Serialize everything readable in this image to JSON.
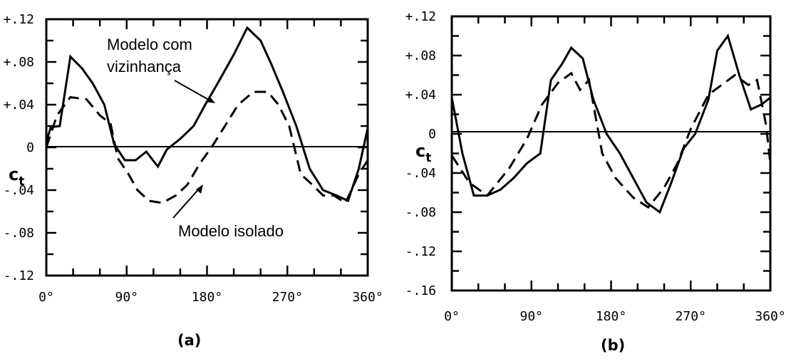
{
  "chart_data": [
    {
      "type": "line",
      "panel_label": "(a)",
      "ylabel": "c",
      "ylabel_sub": "t",
      "xlim": [
        0,
        360
      ],
      "ylim": [
        -0.12,
        0.12
      ],
      "x_tick_labels": [
        "0°",
        "90°",
        "180°",
        "270°",
        "360°"
      ],
      "y_tick_labels": [
        {
          "value": 0.12,
          "label": "+.12"
        },
        {
          "value": 0.08,
          "label": "+.08"
        },
        {
          "value": 0.04,
          "label": "+.04"
        },
        {
          "value": 0,
          "label": "0"
        },
        {
          "value": -0.04,
          "label": "-.04"
        },
        {
          "value": -0.08,
          "label": "-.08"
        },
        {
          "value": -0.12,
          "label": "-.12"
        }
      ],
      "series": [
        {
          "name": "Modelo com vizinhança",
          "style": "solid",
          "x": [
            0,
            5,
            15,
            27,
            40,
            52,
            65,
            76,
            88,
            100,
            112,
            125,
            135,
            150,
            165,
            178,
            192,
            210,
            225,
            240,
            252,
            265,
            280,
            295,
            310,
            325,
            338,
            350,
            360
          ],
          "y": [
            0.005,
            0.019,
            0.02,
            0.085,
            0.074,
            0.06,
            0.04,
            0.003,
            -0.012,
            -0.012,
            -0.004,
            -0.018,
            -0.002,
            0.008,
            0.02,
            0.04,
            0.06,
            0.087,
            0.112,
            0.1,
            0.078,
            0.052,
            0.02,
            -0.02,
            -0.04,
            -0.045,
            -0.05,
            -0.02,
            0.018
          ]
        },
        {
          "name": "Modelo isolado",
          "style": "dashed",
          "x": [
            0,
            12,
            27,
            45,
            60,
            72,
            80,
            92,
            102,
            115,
            130,
            145,
            158,
            172,
            185,
            200,
            215,
            232,
            248,
            260,
            272,
            285,
            298,
            310,
            322,
            335,
            350,
            360
          ],
          "y": [
            0.0,
            0.03,
            0.047,
            0.045,
            0.03,
            0.022,
            -0.01,
            -0.025,
            -0.04,
            -0.05,
            -0.052,
            -0.045,
            -0.035,
            -0.015,
            0.0,
            0.02,
            0.04,
            0.052,
            0.052,
            0.04,
            0.02,
            -0.025,
            -0.035,
            -0.045,
            -0.045,
            -0.052,
            -0.025,
            -0.012
          ]
        }
      ],
      "annotations": [
        {
          "text_lines": [
            "Modelo com",
            "vizinhança"
          ]
        },
        {
          "text_lines": [
            "Modelo isolado"
          ]
        }
      ]
    },
    {
      "type": "line",
      "panel_label": "(b)",
      "ylabel": "c",
      "ylabel_sub": "t",
      "xlim": [
        0,
        360
      ],
      "ylim": [
        -0.16,
        0.12
      ],
      "x_tick_labels": [
        "0°",
        "90°",
        "180°",
        "270°",
        "360°"
      ],
      "y_tick_labels": [
        {
          "value": 0.12,
          "label": "+.12"
        },
        {
          "value": 0.08,
          "label": "+.08"
        },
        {
          "value": 0.04,
          "label": "+.04"
        },
        {
          "value": 0,
          "label": "0"
        },
        {
          "value": -0.04,
          "label": "-.04"
        },
        {
          "value": -0.08,
          "label": "-.08"
        },
        {
          "value": -0.12,
          "label": "-.12"
        },
        {
          "value": -0.16,
          "label": "-.16"
        }
      ],
      "series": [
        {
          "name": "",
          "style": "solid",
          "x": [
            0,
            12,
            25,
            40,
            55,
            70,
            85,
            100,
            112,
            125,
            135,
            148,
            160,
            175,
            190,
            205,
            220,
            235,
            248,
            262,
            275,
            290,
            300,
            312,
            325,
            338,
            350,
            360
          ],
          "y": [
            0.037,
            -0.02,
            -0.063,
            -0.063,
            -0.057,
            -0.045,
            -0.03,
            -0.02,
            0.055,
            0.072,
            0.088,
            0.077,
            0.035,
            0.0,
            -0.02,
            -0.045,
            -0.07,
            -0.08,
            -0.05,
            -0.015,
            0.0,
            0.035,
            0.085,
            0.1,
            0.06,
            0.025,
            0.03,
            0.037
          ]
        },
        {
          "name": "",
          "style": "dashed",
          "x": [
            0,
            20,
            40,
            65,
            85,
            102,
            120,
            135,
            145,
            155,
            170,
            185,
            205,
            222,
            240,
            255,
            270,
            290,
            305,
            320,
            335,
            345,
            355,
            360
          ],
          "y": [
            -0.022,
            -0.05,
            -0.063,
            -0.035,
            -0.005,
            0.03,
            0.052,
            0.062,
            0.045,
            0.055,
            -0.02,
            -0.045,
            -0.065,
            -0.075,
            -0.055,
            -0.03,
            0.005,
            0.04,
            0.05,
            0.06,
            0.05,
            0.055,
            0.01,
            -0.03
          ]
        }
      ]
    }
  ]
}
